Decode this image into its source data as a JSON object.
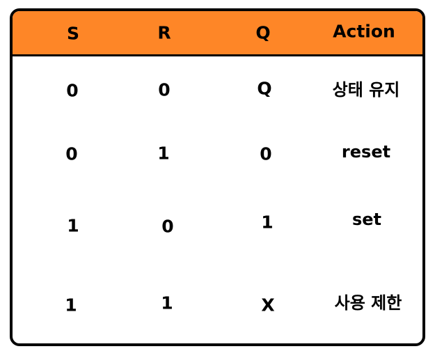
{
  "table": {
    "headers": [
      "S",
      "R",
      "Q",
      "Action"
    ],
    "rows": [
      [
        "0",
        "0",
        "Q",
        "상태 유지"
      ],
      [
        "0",
        "1",
        "0",
        "reset"
      ],
      [
        "1",
        "0",
        "1",
        "set"
      ],
      [
        "1",
        "1",
        "X",
        "사용 제한"
      ]
    ]
  },
  "colors": {
    "header_background": "#fe8627",
    "border": "#000000",
    "text": "#000000"
  }
}
